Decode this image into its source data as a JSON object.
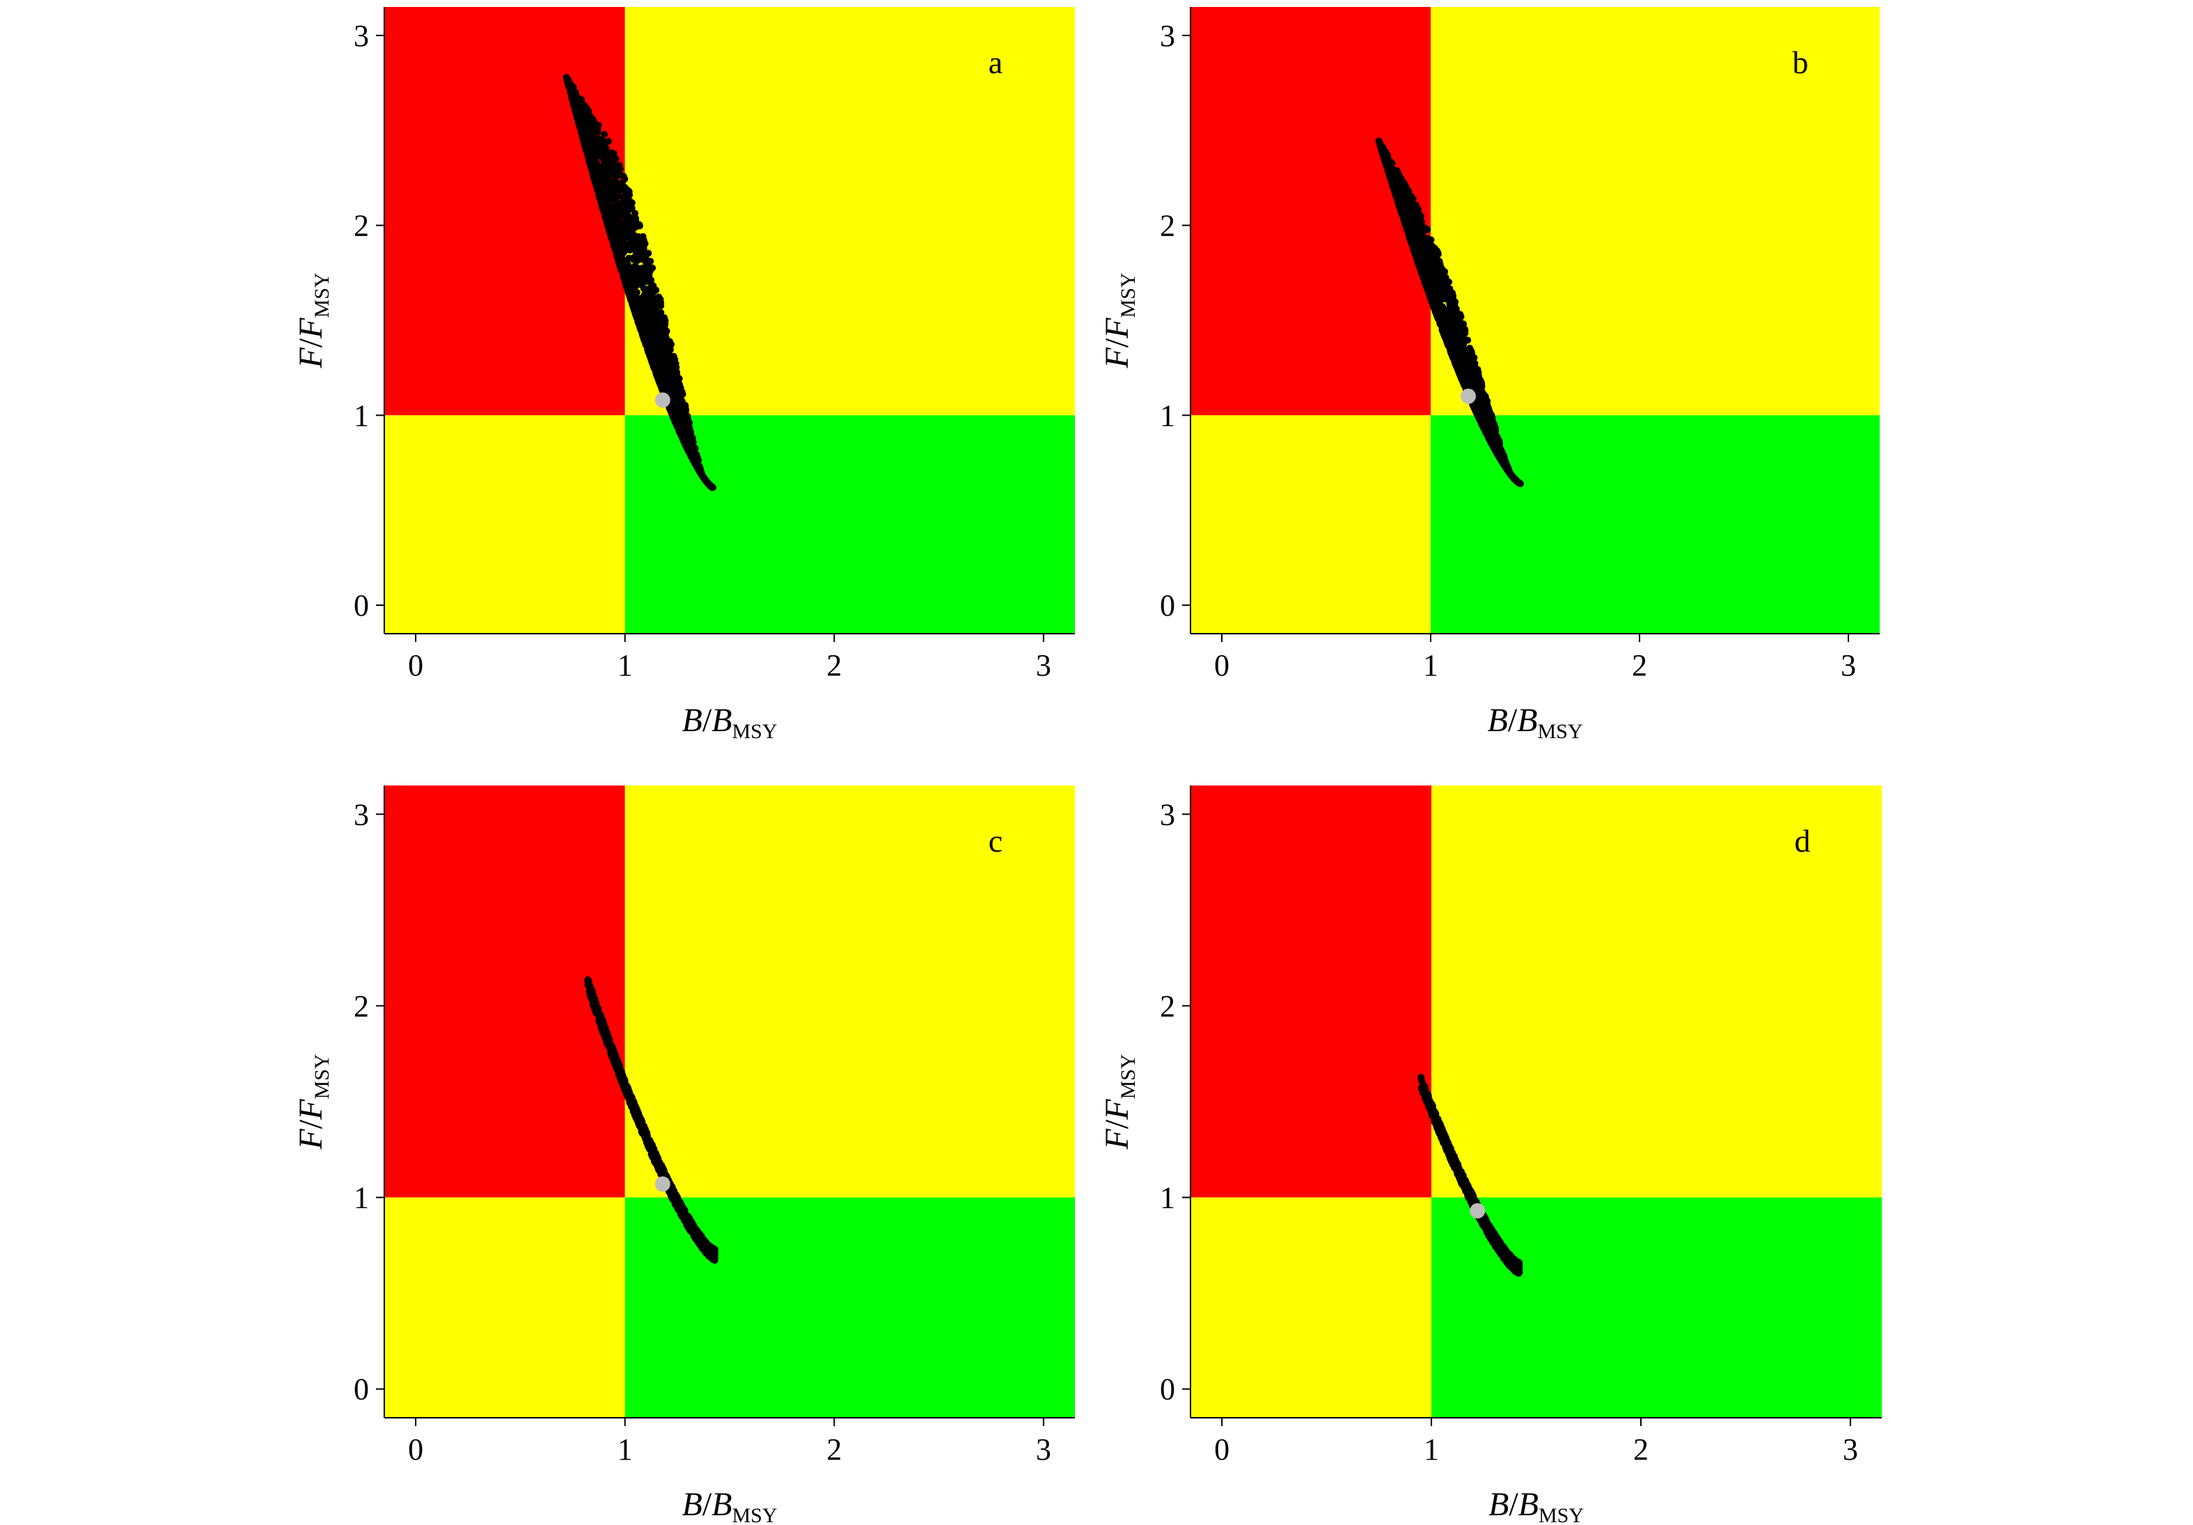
{
  "chart_data": [
    {
      "type": "scatter",
      "panel_label": "a",
      "xlabel": {
        "main": "B",
        "sep": "/",
        "base": "B",
        "sub": "MSY"
      },
      "ylabel": {
        "main": "F",
        "sep": "/",
        "base": "F",
        "sub": "MSY"
      },
      "xlim": [
        -0.15,
        3.15
      ],
      "ylim": [
        -0.15,
        3.15
      ],
      "xticks": [
        0,
        1,
        2,
        3
      ],
      "yticks": [
        0,
        1,
        2,
        3
      ],
      "zones": [
        {
          "name": "overfished-overfishing",
          "x": [
            -0.15,
            1
          ],
          "y": [
            1,
            3.15
          ],
          "color": "#ff0000"
        },
        {
          "name": "overfishing-only",
          "x": [
            1,
            3.15
          ],
          "y": [
            1,
            3.15
          ],
          "color": "#ffff00"
        },
        {
          "name": "overfished-only",
          "x": [
            -0.15,
            1
          ],
          "y": [
            -0.15,
            1
          ],
          "color": "#ffff00"
        },
        {
          "name": "healthy",
          "x": [
            1,
            3.15
          ],
          "y": [
            -0.15,
            1
          ],
          "color": "#00ff00"
        }
      ],
      "cloud": {
        "b_min": 0.72,
        "b_max": 1.42,
        "f_top": 2.78,
        "f_bottom": 0.62,
        "spread": 0.55,
        "n": 2600
      },
      "point_color": "#000000",
      "current": {
        "x": 1.18,
        "y": 1.08,
        "color": "#bdbdbd"
      }
    },
    {
      "type": "scatter",
      "panel_label": "b",
      "xlabel": {
        "main": "B",
        "sep": "/",
        "base": "B",
        "sub": "MSY"
      },
      "ylabel": {
        "main": "F",
        "sep": "/",
        "base": "F",
        "sub": "MSY"
      },
      "xlim": [
        -0.15,
        3.15
      ],
      "ylim": [
        -0.15,
        3.15
      ],
      "xticks": [
        0,
        1,
        2,
        3
      ],
      "yticks": [
        0,
        1,
        2,
        3
      ],
      "zones": [
        {
          "name": "overfished-overfishing",
          "x": [
            -0.15,
            1
          ],
          "y": [
            1,
            3.15
          ],
          "color": "#ff0000"
        },
        {
          "name": "overfishing-only",
          "x": [
            1,
            3.15
          ],
          "y": [
            1,
            3.15
          ],
          "color": "#ffff00"
        },
        {
          "name": "overfished-only",
          "x": [
            -0.15,
            1
          ],
          "y": [
            -0.15,
            1
          ],
          "color": "#ffff00"
        },
        {
          "name": "healthy",
          "x": [
            1,
            3.15
          ],
          "y": [
            -0.15,
            1
          ],
          "color": "#00ff00"
        }
      ],
      "cloud": {
        "b_min": 0.75,
        "b_max": 1.43,
        "f_top": 2.45,
        "f_bottom": 0.64,
        "spread": 0.35,
        "n": 2400
      },
      "point_color": "#000000",
      "current": {
        "x": 1.18,
        "y": 1.1,
        "color": "#bdbdbd"
      }
    },
    {
      "type": "scatter",
      "panel_label": "c",
      "xlabel": {
        "main": "B",
        "sep": "/",
        "base": "B",
        "sub": "MSY"
      },
      "ylabel": {
        "main": "F",
        "sep": "/",
        "base": "F",
        "sub": "MSY"
      },
      "xlim": [
        -0.15,
        3.15
      ],
      "ylim": [
        -0.15,
        3.15
      ],
      "xticks": [
        0,
        1,
        2,
        3
      ],
      "yticks": [
        0,
        1,
        2,
        3
      ],
      "zones": [
        {
          "name": "overfished-overfishing",
          "x": [
            -0.15,
            1
          ],
          "y": [
            1,
            3.15
          ],
          "color": "#ff0000"
        },
        {
          "name": "overfishing-only",
          "x": [
            1,
            3.15
          ],
          "y": [
            1,
            3.15
          ],
          "color": "#ffff00"
        },
        {
          "name": "overfished-only",
          "x": [
            -0.15,
            1
          ],
          "y": [
            -0.15,
            1
          ],
          "color": "#ffff00"
        },
        {
          "name": "healthy",
          "x": [
            1,
            3.15
          ],
          "y": [
            -0.15,
            1
          ],
          "color": "#00ff00"
        }
      ],
      "cloud": {
        "b_min": 0.82,
        "b_max": 1.43,
        "f_top": 2.12,
        "f_bottom": 0.7,
        "spread": 0.03,
        "n": 1500
      },
      "point_color": "#000000",
      "current": {
        "x": 1.18,
        "y": 1.07,
        "color": "#bdbdbd"
      }
    },
    {
      "type": "scatter",
      "panel_label": "d",
      "xlabel": {
        "main": "B",
        "sep": "/",
        "base": "B",
        "sub": "MSY"
      },
      "ylabel": {
        "main": "F",
        "sep": "/",
        "base": "F",
        "sub": "MSY"
      },
      "xlim": [
        -0.15,
        3.15
      ],
      "ylim": [
        -0.15,
        3.15
      ],
      "xticks": [
        0,
        1,
        2,
        3
      ],
      "yticks": [
        0,
        1,
        2,
        3
      ],
      "zones": [
        {
          "name": "overfished-overfishing",
          "x": [
            -0.15,
            1
          ],
          "y": [
            1,
            3.15
          ],
          "color": "#ff0000"
        },
        {
          "name": "overfishing-only",
          "x": [
            1,
            3.15
          ],
          "y": [
            1,
            3.15
          ],
          "color": "#ffff00"
        },
        {
          "name": "overfished-only",
          "x": [
            -0.15,
            1
          ],
          "y": [
            -0.15,
            1
          ],
          "color": "#ffff00"
        },
        {
          "name": "healthy",
          "x": [
            1,
            3.15
          ],
          "y": [
            -0.15,
            1
          ],
          "color": "#00ff00"
        }
      ],
      "cloud": {
        "b_min": 0.95,
        "b_max": 1.42,
        "f_top": 1.6,
        "f_bottom": 0.63,
        "spread": 0.03,
        "n": 1300
      },
      "point_color": "#000000",
      "current": {
        "x": 1.22,
        "y": 0.93,
        "color": "#bdbdbd"
      }
    }
  ]
}
